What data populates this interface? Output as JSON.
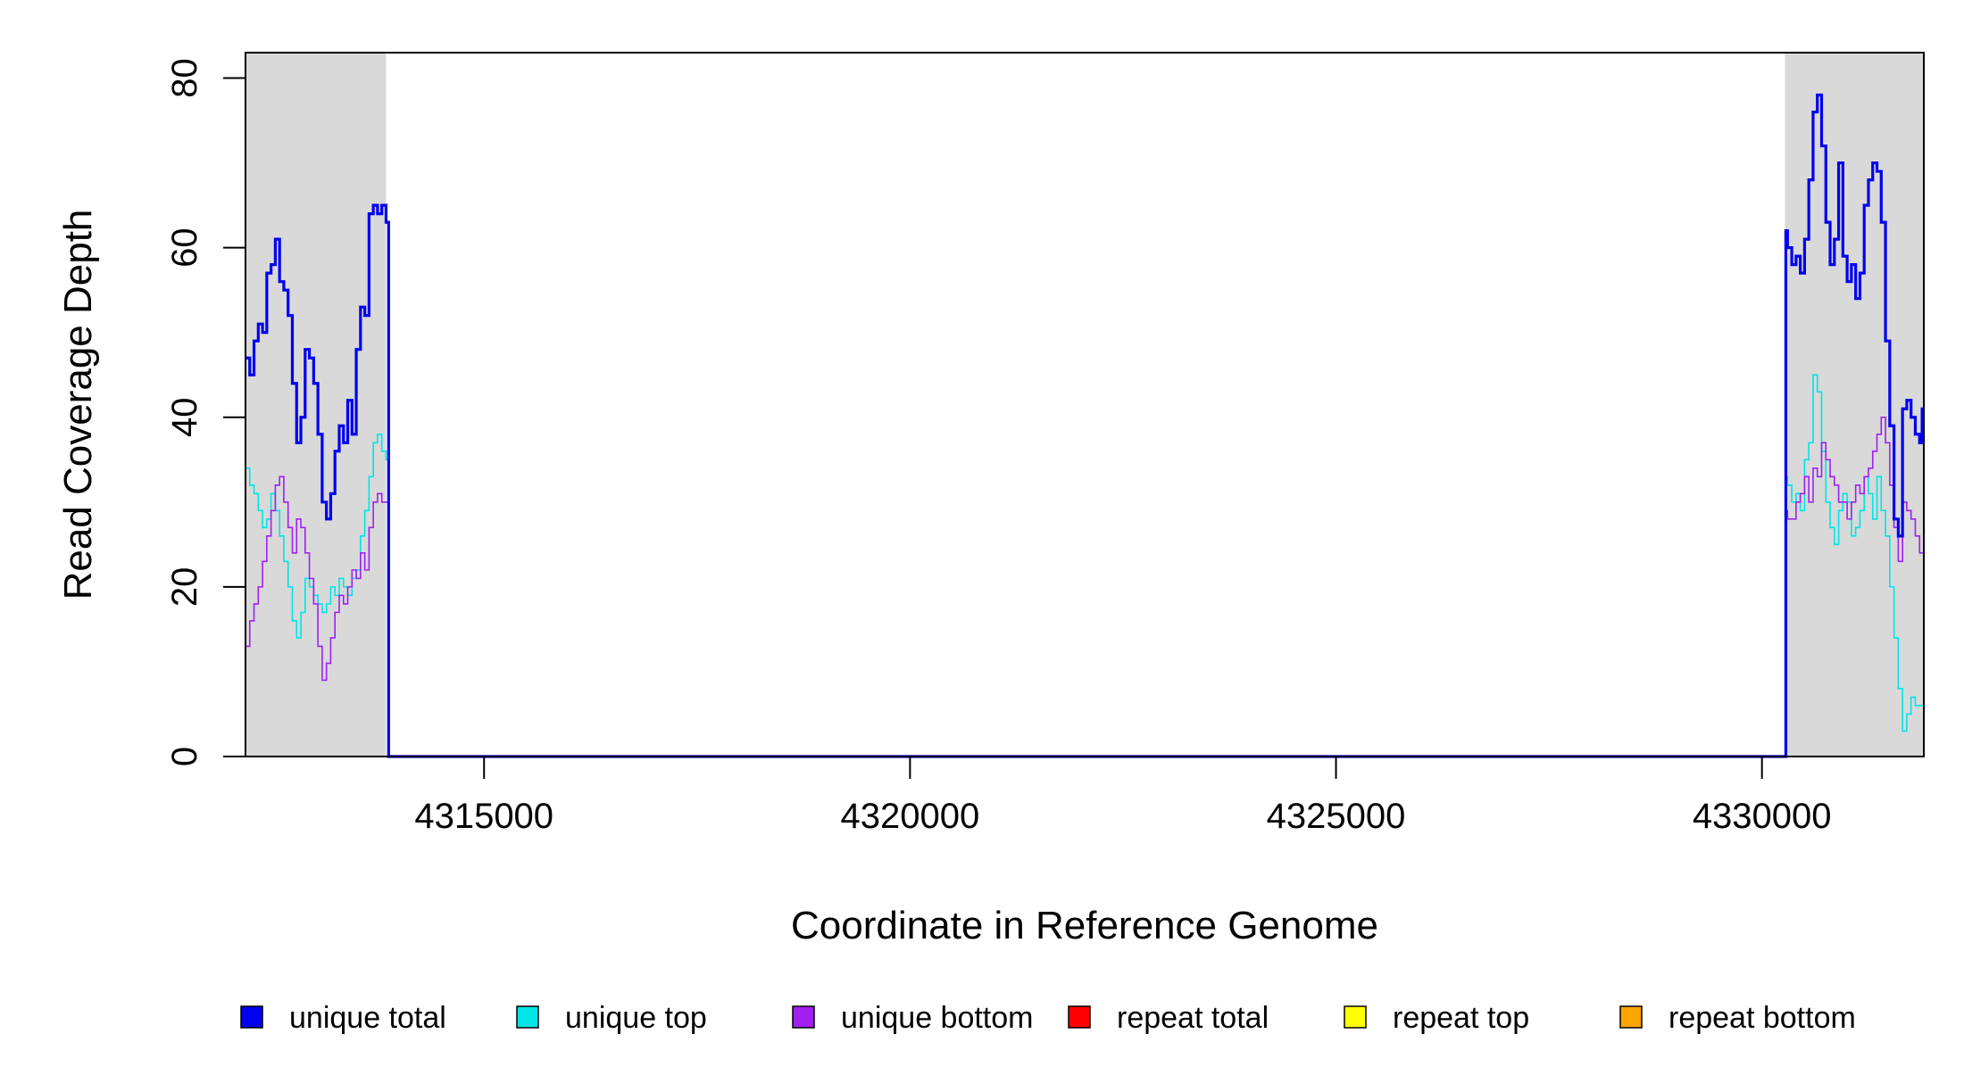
{
  "chart_data": {
    "type": "line",
    "title": "",
    "xlabel": "Coordinate in Reference Genome",
    "ylabel": "Read Coverage Depth",
    "xlim": [
      4312200,
      4331900
    ],
    "ylim": [
      0,
      83
    ],
    "x_ticks": [
      4315000,
      4320000,
      4325000,
      4330000
    ],
    "x_tick_labels": [
      "4315000",
      "4320000",
      "4325000",
      "4330000"
    ],
    "y_ticks": [
      0,
      20,
      40,
      60,
      80
    ],
    "y_tick_labels": [
      "0",
      "20",
      "40",
      "60",
      "80"
    ],
    "grid": false,
    "legend_position": "bottom",
    "shaded_regions": [
      {
        "x0": 4312200,
        "x1": 4313850,
        "color": "#d9d9d9"
      },
      {
        "x0": 4330270,
        "x1": 4331900,
        "color": "#d9d9d9"
      }
    ],
    "series": [
      {
        "name": "unique total",
        "color": "#0000ee",
        "width": 3.2,
        "x": [
          4312200,
          4312250,
          4312300,
          4312350,
          4312400,
          4312450,
          4312500,
          4312550,
          4312600,
          4312650,
          4312700,
          4312750,
          4312800,
          4312850,
          4312900,
          4312950,
          4313000,
          4313050,
          4313100,
          4313150,
          4313200,
          4313250,
          4313300,
          4313350,
          4313400,
          4313450,
          4313500,
          4313550,
          4313600,
          4313650,
          4313700,
          4313750,
          4313800,
          4313850,
          4313880,
          4330250,
          4330280,
          4330300,
          4330350,
          4330400,
          4330450,
          4330500,
          4330550,
          4330600,
          4330650,
          4330700,
          4330750,
          4330800,
          4330850,
          4330900,
          4330950,
          4331000,
          4331050,
          4331100,
          4331150,
          4331200,
          4331250,
          4331300,
          4331350,
          4331400,
          4331450,
          4331500,
          4331550,
          4331600,
          4331650,
          4331700,
          4331750,
          4331800,
          4331850,
          4331880
        ],
        "y": [
          47,
          45,
          49,
          51,
          50,
          57,
          58,
          61,
          56,
          55,
          52,
          44,
          37,
          40,
          48,
          47,
          44,
          38,
          30,
          28,
          31,
          36,
          39,
          37,
          42,
          38,
          48,
          53,
          52,
          64,
          65,
          64,
          65,
          63,
          0,
          0,
          62,
          60,
          58,
          59,
          57,
          61,
          68,
          76,
          78,
          72,
          63,
          58,
          61,
          70,
          59,
          56,
          58,
          54,
          57,
          65,
          68,
          70,
          69,
          63,
          49,
          39,
          28,
          26,
          41,
          42,
          40,
          38,
          37,
          41
        ],
        "mask_zero_until": 4330250
      },
      {
        "name": "unique top",
        "color": "#00e5e5",
        "width": 1.6,
        "x": [
          4312200,
          4312250,
          4312300,
          4312350,
          4312400,
          4312450,
          4312500,
          4312550,
          4312600,
          4312650,
          4312700,
          4312750,
          4312800,
          4312850,
          4312900,
          4312950,
          4313000,
          4313050,
          4313100,
          4313150,
          4313200,
          4313250,
          4313300,
          4313350,
          4313400,
          4313450,
          4313500,
          4313550,
          4313600,
          4313650,
          4313700,
          4313750,
          4313800,
          4313850,
          4313880,
          4330250,
          4330280,
          4330300,
          4330350,
          4330400,
          4330450,
          4330500,
          4330550,
          4330600,
          4330650,
          4330700,
          4330750,
          4330800,
          4330850,
          4330900,
          4330950,
          4331000,
          4331050,
          4331100,
          4331150,
          4331200,
          4331250,
          4331300,
          4331350,
          4331400,
          4331450,
          4331500,
          4331550,
          4331600,
          4331650,
          4331700,
          4331750,
          4331800,
          4331850,
          4331880
        ],
        "y": [
          34,
          32,
          31,
          29,
          27,
          28,
          31,
          29,
          26,
          23,
          20,
          16,
          14,
          17,
          21,
          20,
          19,
          18,
          17,
          18,
          20,
          19,
          21,
          20,
          19,
          21,
          22,
          26,
          29,
          33,
          37,
          38,
          36,
          35,
          0,
          0,
          33,
          32,
          30,
          31,
          29,
          35,
          37,
          45,
          43,
          36,
          30,
          27,
          25,
          29,
          31,
          30,
          26,
          27,
          29,
          33,
          31,
          28,
          33,
          29,
          26,
          20,
          14,
          8,
          3,
          5,
          7,
          6,
          6,
          6
        ],
        "mask_zero_until": 4330250
      },
      {
        "name": "unique bottom",
        "color": "#a020f0",
        "width": 1.6,
        "x": [
          4312200,
          4312250,
          4312300,
          4312350,
          4312400,
          4312450,
          4312500,
          4312550,
          4312600,
          4312650,
          4312700,
          4312750,
          4312800,
          4312850,
          4312900,
          4312950,
          4313000,
          4313050,
          4313100,
          4313150,
          4313200,
          4313250,
          4313300,
          4313350,
          4313400,
          4313450,
          4313500,
          4313550,
          4313600,
          4313650,
          4313700,
          4313750,
          4313800,
          4313850,
          4313880,
          4330250,
          4330280,
          4330300,
          4330350,
          4330400,
          4330450,
          4330500,
          4330550,
          4330600,
          4330650,
          4330700,
          4330750,
          4330800,
          4330850,
          4330900,
          4330950,
          4331000,
          4331050,
          4331100,
          4331150,
          4331200,
          4331250,
          4331300,
          4331350,
          4331400,
          4331450,
          4331500,
          4331550,
          4331600,
          4331650,
          4331700,
          4331750,
          4331800,
          4331850,
          4331880
        ],
        "y": [
          13,
          16,
          18,
          20,
          23,
          26,
          29,
          32,
          33,
          30,
          27,
          24,
          28,
          27,
          24,
          21,
          18,
          13,
          9,
          11,
          14,
          17,
          19,
          18,
          20,
          22,
          21,
          24,
          22,
          27,
          30,
          31,
          30,
          30,
          0,
          0,
          29,
          28,
          28,
          30,
          31,
          33,
          30,
          34,
          33,
          37,
          35,
          33,
          32,
          30,
          30,
          28,
          30,
          32,
          31,
          33,
          34,
          36,
          38,
          40,
          37,
          32,
          27,
          23,
          30,
          29,
          28,
          26,
          24,
          24
        ],
        "mask_zero_until": 4330250
      },
      {
        "name": "repeat total",
        "color": "#ff0000",
        "width": 1.5,
        "x": [
          4312200,
          4331900
        ],
        "y": [
          0,
          0
        ]
      },
      {
        "name": "repeat top",
        "color": "#ffff00",
        "width": 1.5,
        "x": [
          4312200,
          4331900
        ],
        "y": [
          0,
          0
        ]
      },
      {
        "name": "repeat bottom",
        "color": "#ffa500",
        "width": 2,
        "x": [
          4312200,
          4331900
        ],
        "y": [
          0,
          0
        ]
      }
    ],
    "legend": [
      {
        "label": "unique total",
        "color": "#0000ee"
      },
      {
        "label": "unique top",
        "color": "#00e5e5"
      },
      {
        "label": "unique bottom",
        "color": "#a020f0"
      },
      {
        "label": "repeat total",
        "color": "#ff0000"
      },
      {
        "label": "repeat top",
        "color": "#ffff00"
      },
      {
        "label": "repeat bottom",
        "color": "#ffa500"
      }
    ]
  }
}
